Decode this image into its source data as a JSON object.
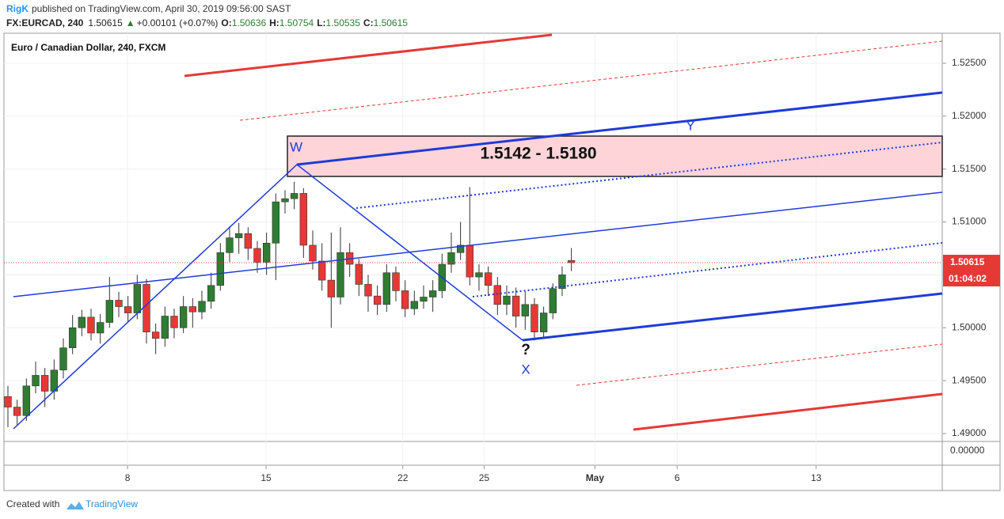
{
  "header": {
    "author": "RigK",
    "published": "published on TradingView.com, April 30, 2019 09:56:00 SAST",
    "symbol": "FX:EURCAD, 240",
    "change": "+0.00101 (+0.07%)",
    "o": "O:",
    "h": "H:",
    "l": "L:",
    "c": "C:"
  },
  "footer": {
    "created": "Created with",
    "brand": "TradingView"
  },
  "chart_data": {
    "type": "candlestick",
    "title": "Euro / Canadian Dollar, 240, FXCM",
    "x": [
      0,
      2,
      4,
      6,
      8,
      10,
      12,
      14,
      16,
      18,
      20,
      22,
      24,
      26,
      28,
      30,
      32,
      34,
      36,
      38,
      40,
      42,
      44,
      46,
      48,
      50,
      52,
      54,
      56,
      58,
      60,
      62,
      64,
      66,
      68,
      70,
      72,
      74,
      76,
      78,
      80,
      82,
      84,
      86,
      88,
      90,
      92,
      94,
      96,
      98,
      100,
      102,
      104,
      106,
      108,
      110,
      112,
      114,
      116,
      118,
      120,
      122
    ],
    "open": [
      1.4935,
      1.4925,
      1.4917,
      1.4945,
      1.4955,
      1.494,
      1.496,
      1.4981,
      1.5,
      1.501,
      1.4995,
      1.5005,
      1.5026,
      1.502,
      1.5014,
      1.5041,
      1.4996,
      1.499,
      1.5011,
      1.5,
      1.502,
      1.5015,
      1.5025,
      1.504,
      1.5071,
      1.5085,
      1.5089,
      1.5075,
      1.5062,
      1.508,
      1.5119,
      1.5122,
      1.5127,
      1.5078,
      1.5063,
      1.5045,
      1.5029,
      1.5071,
      1.506,
      1.5041,
      1.503,
      1.5022,
      1.5052,
      1.5035,
      1.5018,
      1.5025,
      1.5029,
      1.5035,
      1.506,
      1.5071,
      1.5078,
      1.5048,
      1.5052,
      1.504,
      1.5022,
      1.503,
      1.5011,
      1.5022,
      1.4996,
      1.5014,
      1.5037,
      1.50636
    ],
    "high": [
      1.4945,
      1.4932,
      1.4952,
      1.4968,
      1.4962,
      1.497,
      1.499,
      1.5012,
      1.5017,
      1.5018,
      1.5013,
      1.5048,
      1.5034,
      1.503,
      1.505,
      1.5046,
      1.5004,
      1.502,
      1.5018,
      1.503,
      1.5028,
      1.5035,
      1.5052,
      1.508,
      1.5096,
      1.5099,
      1.5095,
      1.5082,
      1.509,
      1.5127,
      1.513,
      1.5138,
      1.5132,
      1.5092,
      1.508,
      1.509,
      1.5095,
      1.508,
      1.5065,
      1.505,
      1.504,
      1.506,
      1.5058,
      1.5045,
      1.5035,
      1.504,
      1.5045,
      1.507,
      1.509,
      1.51,
      1.5133,
      1.506,
      1.5058,
      1.5048,
      1.504,
      1.5038,
      1.5035,
      1.5028,
      1.502,
      1.5042,
      1.5058,
      1.50754
    ],
    "low": [
      1.4906,
      1.4908,
      1.4912,
      1.4938,
      1.4925,
      1.4932,
      1.4952,
      1.4975,
      1.4992,
      1.4988,
      1.4985,
      1.5,
      1.501,
      1.5005,
      1.5008,
      1.4985,
      1.4975,
      1.4982,
      1.499,
      1.4995,
      1.5,
      1.5008,
      1.5018,
      1.5035,
      1.5062,
      1.507,
      1.5064,
      1.5052,
      1.505,
      1.5045,
      1.5108,
      1.5112,
      1.5066,
      1.5055,
      1.5035,
      1.5,
      1.5022,
      1.5048,
      1.503,
      1.5015,
      1.5012,
      1.5015,
      1.5025,
      1.501,
      1.5012,
      1.5018,
      1.5015,
      1.5028,
      1.5052,
      1.5064,
      1.504,
      1.5035,
      1.503,
      1.5012,
      1.5012,
      1.5,
      1.4998,
      1.4988,
      1.499,
      1.5008,
      1.503,
      1.50535
    ],
    "close": [
      1.4925,
      1.4917,
      1.4945,
      1.4955,
      1.494,
      1.496,
      1.4981,
      1.5,
      1.501,
      1.4995,
      1.5005,
      1.5026,
      1.502,
      1.5014,
      1.5041,
      1.4996,
      1.499,
      1.5011,
      1.5,
      1.502,
      1.5015,
      1.5025,
      1.504,
      1.5071,
      1.5085,
      1.5089,
      1.5075,
      1.5062,
      1.508,
      1.5119,
      1.5122,
      1.5127,
      1.5078,
      1.5063,
      1.5045,
      1.5029,
      1.5071,
      1.506,
      1.5041,
      1.503,
      1.5022,
      1.5052,
      1.5035,
      1.5018,
      1.5025,
      1.5029,
      1.5035,
      1.506,
      1.5071,
      1.5078,
      1.5048,
      1.5052,
      1.504,
      1.5022,
      1.503,
      1.5011,
      1.5022,
      1.4996,
      1.5014,
      1.5037,
      1.505,
      1.50615
    ],
    "up_color": "#2e7d32",
    "down_color": "#e53935",
    "xlim": [
      -0.857,
      202.3
    ],
    "xticks": [
      {
        "value": 25.9,
        "label": "8"
      },
      {
        "value": 55.9,
        "label": "15"
      },
      {
        "value": 85.5,
        "label": "22"
      },
      {
        "value": 103.1,
        "label": "25"
      },
      {
        "value": 127.1,
        "label": "May"
      },
      {
        "value": 144.9,
        "label": "6"
      },
      {
        "value": 175,
        "label": "13"
      }
    ],
    "ylim": [
      1.48925,
      1.52784
    ],
    "yticks": [
      {
        "value": 1.49,
        "label": "1.49000"
      },
      {
        "value": 1.495,
        "label": "1.49500"
      },
      {
        "value": 1.5,
        "label": "1.50000"
      },
      {
        "value": 1.505,
        "label": "1.50500"
      },
      {
        "value": 1.51,
        "label": "1.51000"
      },
      {
        "value": 1.515,
        "label": "1.51500"
      },
      {
        "value": 1.52,
        "label": "1.52000"
      },
      {
        "value": 1.525,
        "label": "1.52500"
      }
    ],
    "grid": true,
    "countdown": "01:04:02",
    "lower_pane_tick": "0.00000",
    "annotations": {
      "zone": "1.5142 - 1.5180",
      "w": "W",
      "x": "X",
      "y": "Y",
      "q": "?"
    }
  }
}
